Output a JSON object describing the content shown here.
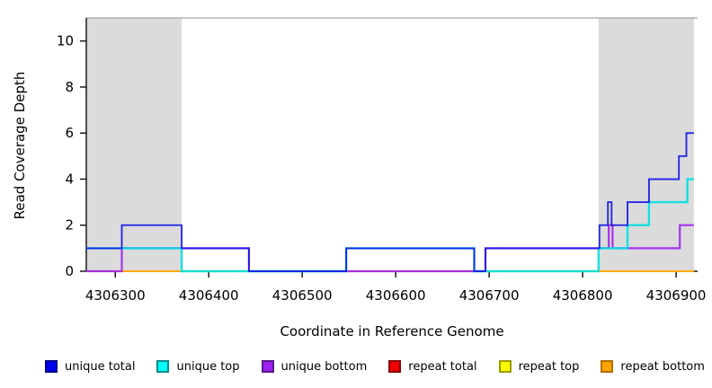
{
  "figure": {
    "x_axis_title": "Coordinate in Reference Genome",
    "y_axis_title": "Read Coverage Depth"
  },
  "chart_data": {
    "type": "line",
    "subtype": "step",
    "title": "",
    "xlabel": "Coordinate in Reference Genome",
    "ylabel": "Read Coverage Depth",
    "xlim": [
      4306269,
      4306923
    ],
    "ylim": [
      0,
      11
    ],
    "xticks": [
      4306300,
      4306400,
      4306500,
      4306600,
      4306700,
      4306800,
      4306900
    ],
    "yticks": [
      0,
      2,
      4,
      6,
      8,
      10
    ],
    "grid": false,
    "legend_position": "bottom",
    "box_top_color": "#a3a3a3",
    "axis_color": "#1a1a1a",
    "shaded_regions": [
      {
        "name": "left-repeat-region",
        "x0": 4306269,
        "x1": 4306371,
        "color": "#dbdbdb"
      },
      {
        "name": "right-repeat-region",
        "x0": 4306817,
        "x1": 4306919,
        "color": "#dbdbdb"
      }
    ],
    "series": [
      {
        "name": "repeat total",
        "color": "#ee0000",
        "width": 2.0,
        "points": [
          [
            4306269,
            0
          ],
          [
            4306919,
            0
          ]
        ]
      },
      {
        "name": "repeat top",
        "color": "#ffff00",
        "width": 2.0,
        "points": [
          [
            4306269,
            0
          ],
          [
            4306919,
            0
          ]
        ]
      },
      {
        "name": "repeat bottom",
        "color": "#ffa500",
        "width": 2.0,
        "points": [
          [
            4306269,
            0
          ],
          [
            4306919,
            0
          ]
        ]
      },
      {
        "name": "unique bottom",
        "color": "#a020f0",
        "width": 2.2,
        "points": [
          [
            4306269,
            0
          ],
          [
            4306307,
            0
          ],
          [
            4306307,
            1
          ],
          [
            4306443,
            1
          ],
          [
            4306443,
            0
          ],
          [
            4306696,
            0
          ],
          [
            4306696,
            1
          ],
          [
            4306828,
            1
          ],
          [
            4306828,
            2
          ],
          [
            4306832,
            2
          ],
          [
            4306832,
            1
          ],
          [
            4306904,
            1
          ],
          [
            4306904,
            2
          ],
          [
            4306919,
            2
          ]
        ]
      },
      {
        "name": "unique top",
        "color": "#00e0e0",
        "width": 2.4,
        "points": [
          [
            4306269,
            1
          ],
          [
            4306371,
            1
          ],
          [
            4306371,
            0
          ],
          [
            4306547,
            0
          ],
          [
            4306547,
            1
          ],
          [
            4306684,
            1
          ],
          [
            4306684,
            0
          ],
          [
            4306817,
            0
          ],
          [
            4306817,
            1
          ],
          [
            4306848,
            1
          ],
          [
            4306848,
            2
          ],
          [
            4306871,
            2
          ],
          [
            4306871,
            3
          ],
          [
            4306912,
            3
          ],
          [
            4306912,
            4
          ],
          [
            4306919,
            4
          ]
        ]
      },
      {
        "name": "unique total",
        "color": "#1414e6",
        "width": 1.9,
        "points": [
          [
            4306269,
            1
          ],
          [
            4306307,
            1
          ],
          [
            4306307,
            2
          ],
          [
            4306371,
            2
          ],
          [
            4306371,
            1
          ],
          [
            4306443,
            1
          ],
          [
            4306443,
            0
          ],
          [
            4306547,
            0
          ],
          [
            4306547,
            1
          ],
          [
            4306684,
            1
          ],
          [
            4306684,
            0
          ],
          [
            4306696,
            0
          ],
          [
            4306696,
            1
          ],
          [
            4306818,
            1
          ],
          [
            4306818,
            2
          ],
          [
            4306827,
            2
          ],
          [
            4306827,
            3
          ],
          [
            4306831,
            3
          ],
          [
            4306831,
            2
          ],
          [
            4306848,
            2
          ],
          [
            4306848,
            3
          ],
          [
            4306871,
            3
          ],
          [
            4306871,
            4
          ],
          [
            4306903,
            4
          ],
          [
            4306903,
            5
          ],
          [
            4306911,
            5
          ],
          [
            4306911,
            6
          ],
          [
            4306919,
            6
          ]
        ]
      }
    ]
  },
  "legend": {
    "items": [
      {
        "label": "unique total",
        "color": "#0000ee",
        "border": "#00008b"
      },
      {
        "label": "unique top",
        "color": "#00ffff",
        "border": "#008b8b"
      },
      {
        "label": "unique bottom",
        "color": "#a020f0",
        "border": "#551a8b"
      },
      {
        "label": "repeat total",
        "color": "#ee0000",
        "border": "#8b0000"
      },
      {
        "label": "repeat top",
        "color": "#ffff00",
        "border": "#9a9a00"
      },
      {
        "label": "repeat bottom",
        "color": "#ffa500",
        "border": "#b06f00"
      }
    ]
  }
}
